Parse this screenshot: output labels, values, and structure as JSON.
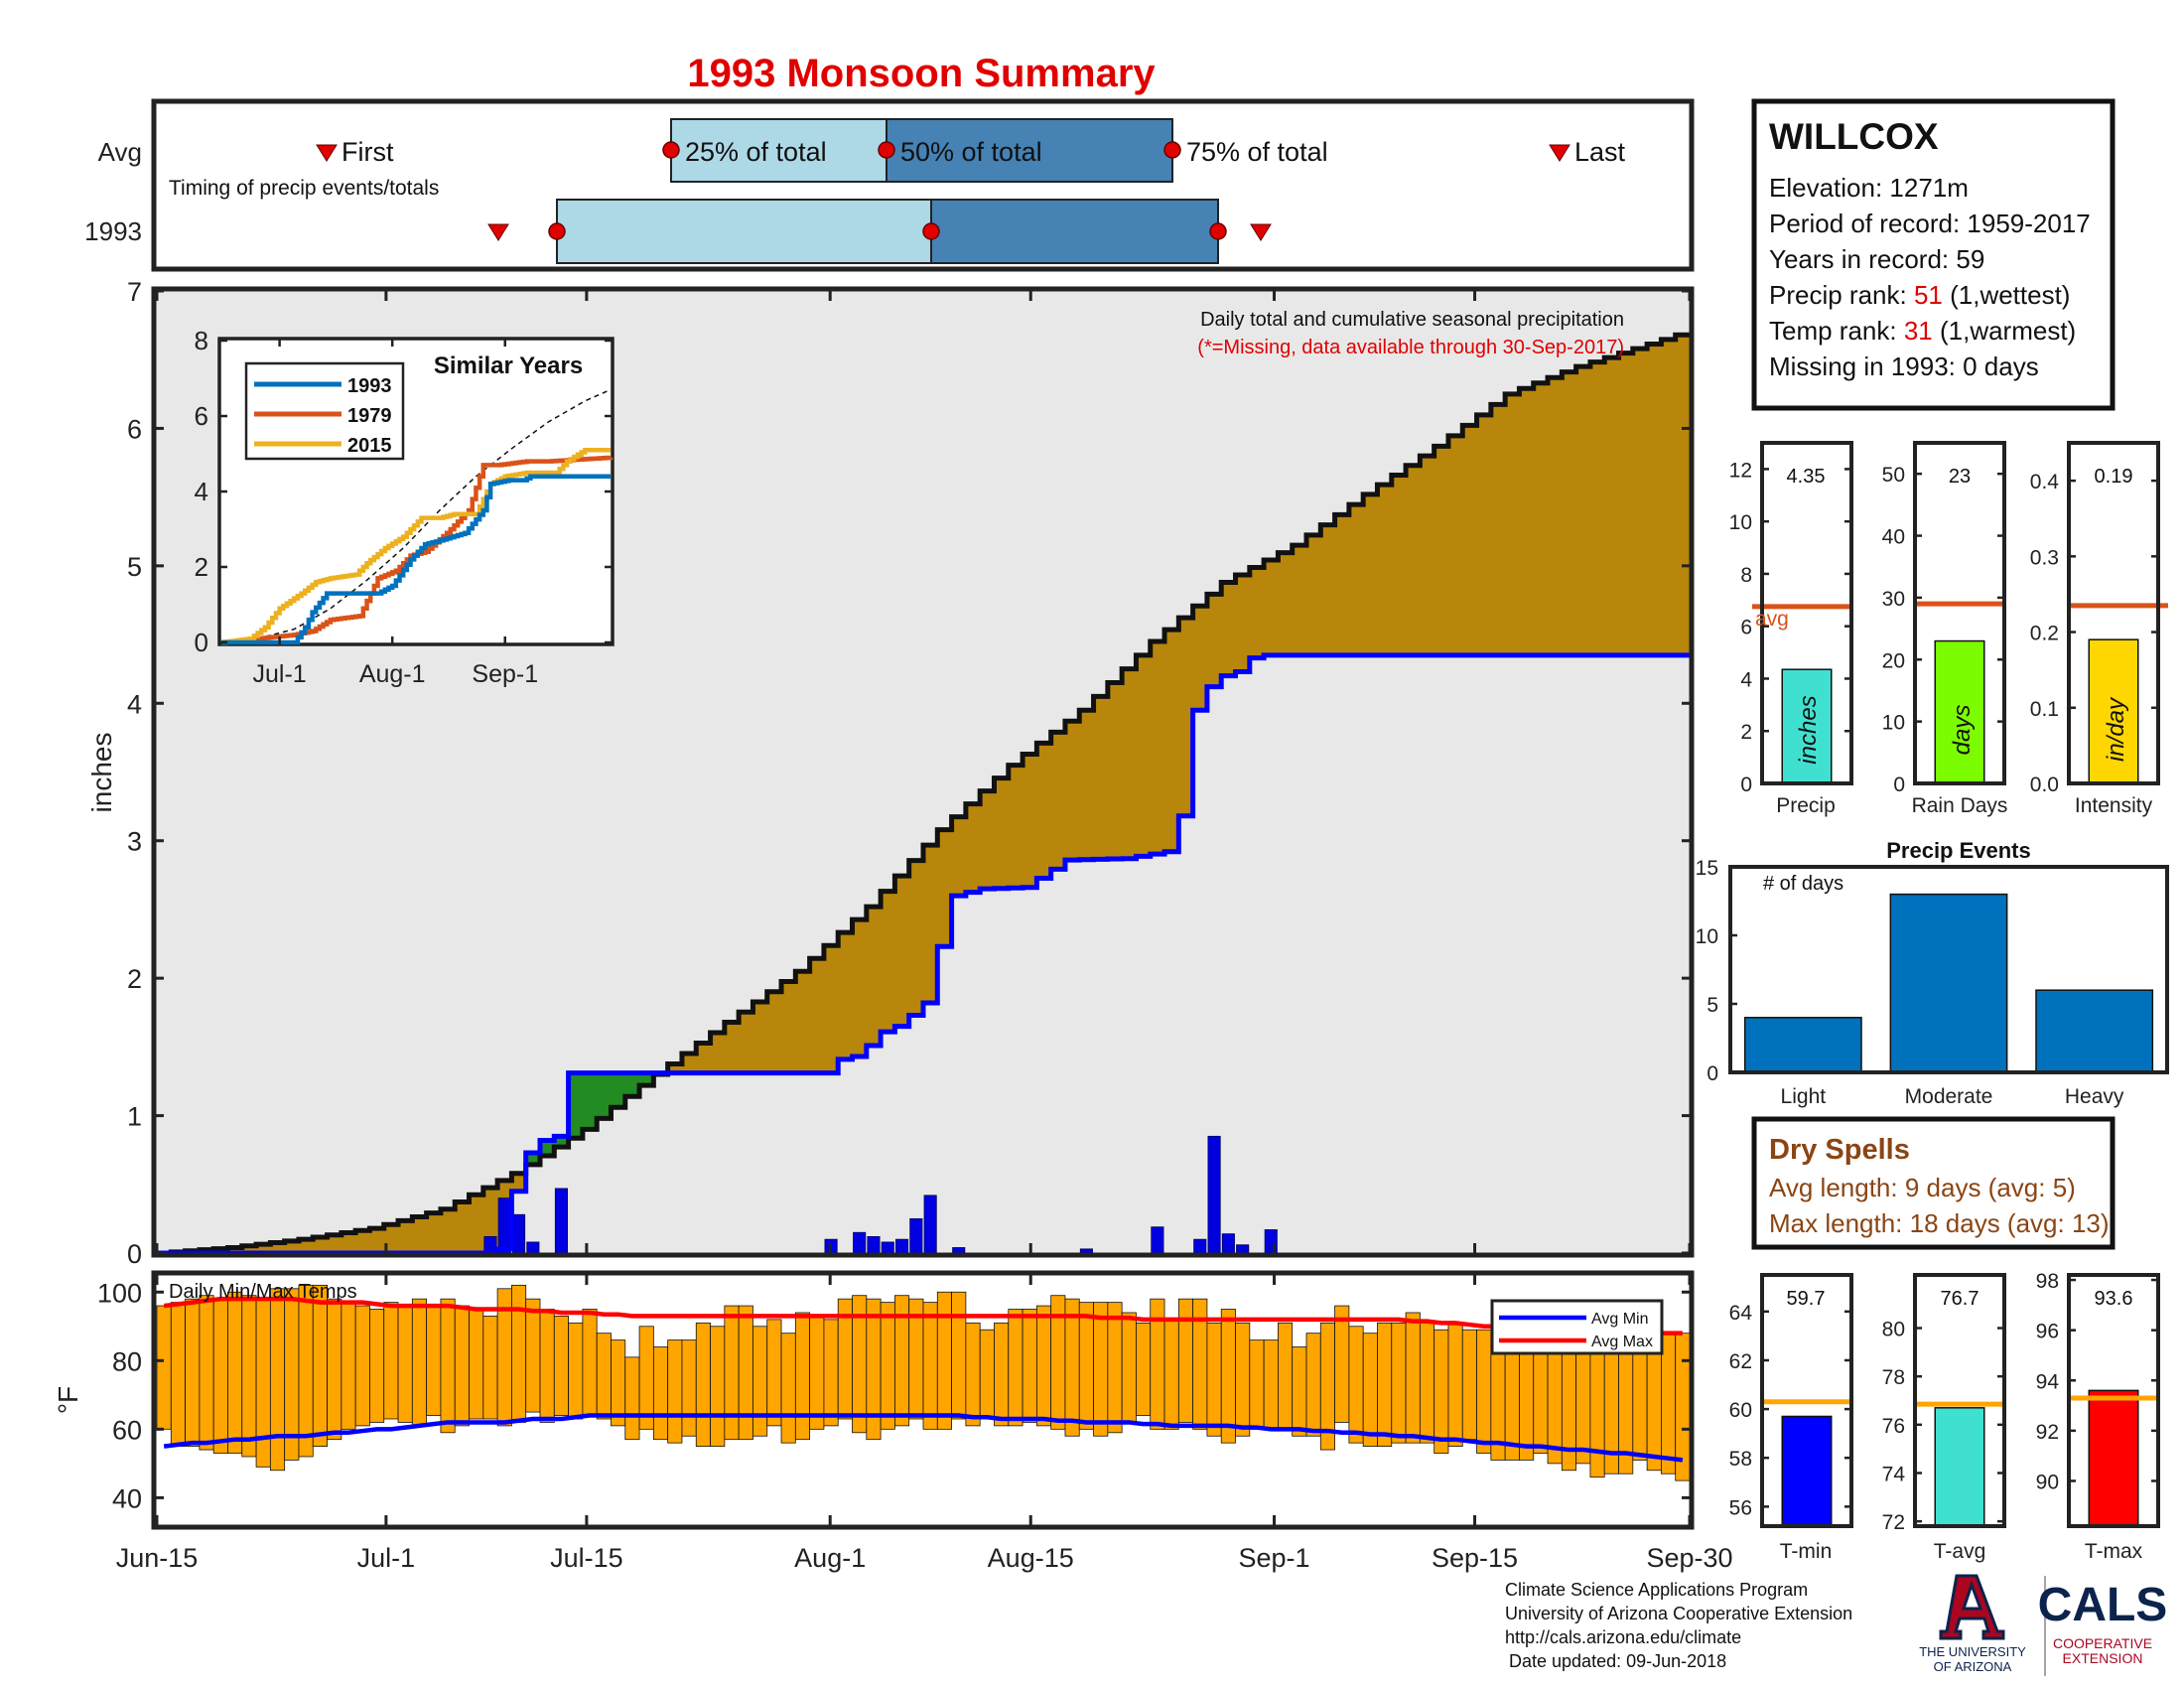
{
  "title": "1993 Monsoon Summary",
  "timing": {
    "row_labels": [
      "Avg",
      "1993"
    ],
    "first_label": "First",
    "last_label": "Last",
    "pct25_label": "25% of total",
    "pct50_label": "50% of total",
    "pct75_label": "75% of total",
    "caption": "Timing of precip events/totals"
  },
  "station": {
    "name": "WILLCOX",
    "elevation": "Elevation: 1271m",
    "period": "Period of record: 1959-2017",
    "years": "Years in record: 59",
    "precip_rank_prefix": "Precip rank: ",
    "precip_rank_value": "51",
    "precip_rank_suffix": " (1,wettest)",
    "temp_rank_prefix": "Temp rank: ",
    "temp_rank_value": "31",
    "temp_rank_suffix": " (1,warmest)",
    "missing": "Missing in 1993: 0 days"
  },
  "main_notes": {
    "line1": "Daily total and cumulative seasonal precipitation",
    "line2": "(*=Missing, data available through 30-Sep-2017)",
    "ylabel": "inches"
  },
  "inset": {
    "title": "Similar Years",
    "legend": [
      "1993",
      "1979",
      "2015"
    ],
    "xticks": [
      "Jul-1",
      "Aug-1",
      "Sep-1"
    ]
  },
  "x_axis_labels": [
    "Jun-15",
    "Jul-1",
    "Jul-15",
    "Aug-1",
    "Aug-15",
    "Sep-1",
    "Sep-15",
    "Sep-30"
  ],
  "temps": {
    "label": "Daily Min/Max Temps",
    "ylabel": "°F",
    "legend_min": "Avg Min",
    "legend_max": "Avg Max"
  },
  "small_panels": {
    "precip": {
      "value_label": "4.35",
      "unit": "inches",
      "name": "Precip",
      "avg_text": "avg"
    },
    "rain_days": {
      "value_label": "23",
      "unit": "days",
      "name": "Rain Days"
    },
    "intensity": {
      "value_label": "0.19",
      "unit": "in/day",
      "name": "Intensity"
    }
  },
  "events": {
    "title": "Precip Events",
    "sub": "# of days"
  },
  "dry_spells": {
    "title": "Dry Spells",
    "avg": "Avg length: 9 days (avg: 5)",
    "max": "Max length: 18 days (avg: 13)"
  },
  "temp_panels": {
    "tmin": {
      "value_label": "59.7",
      "name": "T-min"
    },
    "tavg": {
      "value_label": "76.7",
      "name": "T-avg"
    },
    "tmax": {
      "value_label": "93.6",
      "name": "T-max"
    }
  },
  "footer": {
    "line1": "Climate Science Applications Program",
    "line2": "University of Arizona Cooperative Extension",
    "line3": "http://cals.arizona.edu/climate",
    "line4": "Date updated: 09-Jun-2018",
    "ua_line1": "THE UNIVERSITY",
    "ua_line2": "OF ARIZONA",
    "cals": "CALS",
    "cals_sub1": "COOPERATIVE",
    "cals_sub2": "EXTENSION"
  },
  "colors": {
    "title": "#e00000",
    "avg_fill": "#b8860b",
    "above_fill": "#228b22",
    "year_line": "#0000ff",
    "bars": "#0000e0",
    "temp_bars": "#ffa500",
    "avg_max": "#ff0000",
    "avg_min": "#0000ff",
    "brown_text": "#8b4513",
    "c1993": "#0072bd",
    "c1979": "#d95319",
    "c2015": "#edb120"
  },
  "chart_data": [
    {
      "type": "line",
      "name": "main-cumulative",
      "x_unit": "day index (0 = Jun-15, 107 = Sep-30)",
      "ylim": [
        0,
        7
      ],
      "yticks": [
        0,
        1,
        2,
        3,
        4,
        5,
        6,
        7
      ],
      "series": [
        {
          "name": "avg_cum",
          "x": [
            0,
            5,
            10,
            15,
            20,
            25,
            30,
            35,
            40,
            45,
            50,
            55,
            60,
            65,
            70,
            75,
            80,
            85,
            90,
            95,
            100,
            104,
            107
          ],
          "values": [
            0,
            0.04,
            0.1,
            0.18,
            0.32,
            0.58,
            0.9,
            1.3,
            1.68,
            2.05,
            2.52,
            3.08,
            3.55,
            3.95,
            4.45,
            4.88,
            5.15,
            5.52,
            5.87,
            6.25,
            6.45,
            6.58,
            6.68
          ]
        },
        {
          "name": "1993_cum",
          "x": [
            0,
            23,
            24,
            25,
            26,
            27,
            28,
            29,
            30,
            31,
            47,
            48,
            49,
            50,
            51,
            52,
            53,
            54,
            55,
            56,
            58,
            61,
            64,
            68,
            71,
            72,
            73,
            74,
            75,
            76,
            77,
            78,
            107
          ],
          "values": [
            0,
            0,
            0.03,
            0.45,
            0.73,
            0.82,
            0.85,
            1.31,
            1.31,
            1.31,
            1.31,
            1.41,
            1.43,
            1.51,
            1.61,
            1.65,
            1.73,
            1.82,
            2.23,
            2.6,
            2.65,
            2.66,
            2.86,
            2.87,
            2.92,
            3.18,
            3.95,
            4.12,
            4.2,
            4.23,
            4.33,
            4.35,
            4.35
          ]
        },
        {
          "name": "daily_1993_bars",
          "x": [
            23,
            24,
            25,
            26,
            28,
            47,
            49,
            50,
            51,
            52,
            53,
            54,
            56,
            65,
            70,
            73,
            74,
            75,
            76,
            78
          ],
          "values": [
            0.12,
            0.4,
            0.28,
            0.08,
            0.47,
            0.1,
            0.15,
            0.12,
            0.08,
            0.1,
            0.25,
            0.42,
            0.04,
            0.03,
            0.19,
            0.1,
            0.85,
            0.14,
            0.06,
            0.17
          ]
        }
      ]
    },
    {
      "type": "line",
      "name": "similar-years-inset",
      "x_unit": "day index (0 = Jun-15)",
      "ylim": [
        0,
        8
      ],
      "yticks": [
        0,
        2,
        4,
        6,
        8
      ],
      "series": [
        {
          "name": "1993",
          "x": [
            0,
            20,
            23,
            25,
            29,
            43,
            47,
            52,
            56,
            60,
            67,
            72,
            74,
            79,
            83,
            85,
            107
          ],
          "values": [
            0,
            0,
            0.4,
            0.8,
            1.3,
            1.3,
            1.5,
            2.2,
            2.6,
            2.7,
            2.9,
            3.5,
            4.2,
            4.3,
            4.3,
            4.4,
            4.4
          ]
        },
        {
          "name": "1979",
          "x": [
            0,
            10,
            20,
            25,
            30,
            38,
            43,
            48,
            52,
            56,
            62,
            68,
            72,
            76,
            84,
            90,
            107
          ],
          "values": [
            0,
            0.1,
            0.2,
            0.3,
            0.6,
            0.7,
            1.7,
            1.9,
            2.3,
            2.4,
            2.9,
            3.5,
            4.7,
            4.7,
            4.8,
            4.8,
            4.9
          ]
        },
        {
          "name": "2015",
          "x": [
            0,
            8,
            12,
            16,
            22,
            26,
            30,
            37,
            40,
            45,
            50,
            55,
            60,
            64,
            70,
            74,
            78,
            84,
            92,
            95,
            100,
            107
          ],
          "values": [
            0,
            0.1,
            0.4,
            0.9,
            1.3,
            1.6,
            1.7,
            1.8,
            2.1,
            2.5,
            2.8,
            3.3,
            3.3,
            3.4,
            3.4,
            4.2,
            4.4,
            4.5,
            4.5,
            4.8,
            5.1,
            5.1
          ]
        },
        {
          "name": "avg_dashed",
          "x": [
            0,
            10,
            20,
            30,
            40,
            50,
            60,
            70,
            80,
            90,
            100,
            107
          ],
          "values": [
            0,
            0.1,
            0.35,
            0.9,
            1.65,
            2.5,
            3.5,
            4.4,
            5.15,
            5.85,
            6.4,
            6.7
          ]
        }
      ]
    },
    {
      "type": "bar",
      "name": "daily-temps",
      "x_unit": "day index (0 = Jun-15)",
      "ylim": [
        32,
        105
      ],
      "yticks": [
        40,
        60,
        80,
        100
      ],
      "tmax": [
        96,
        97,
        98,
        99,
        98,
        100,
        99,
        98,
        101,
        101,
        102,
        102,
        98,
        97,
        96,
        95,
        97,
        96,
        98,
        96,
        98,
        96,
        95,
        93,
        101,
        102,
        98,
        95,
        93,
        91,
        95,
        88,
        86,
        81,
        90,
        84,
        86,
        86,
        91,
        90,
        96,
        96,
        90,
        92,
        88,
        94,
        93,
        92,
        98,
        99,
        98,
        97,
        99,
        98,
        97,
        100,
        100,
        91,
        89,
        91,
        95,
        95,
        96,
        99,
        98,
        97,
        97,
        97,
        94,
        91,
        98,
        92,
        98,
        98,
        91,
        95,
        91,
        86,
        86,
        91,
        84,
        88,
        91,
        96,
        90,
        88,
        91,
        91,
        94,
        91,
        89,
        91,
        89,
        89,
        88,
        90,
        90,
        86,
        87,
        89,
        90,
        86,
        86,
        89,
        88,
        88,
        88,
        88
      ],
      "tmin": [
        60,
        55,
        55,
        54,
        53,
        53,
        52,
        49,
        48,
        51,
        52,
        55,
        57,
        60,
        61,
        62,
        63,
        62,
        61,
        64,
        59,
        61,
        63,
        63,
        61,
        62,
        65,
        62,
        64,
        63,
        64,
        63,
        61,
        57,
        60,
        57,
        56,
        58,
        55,
        55,
        57,
        57,
        58,
        61,
        56,
        57,
        60,
        61,
        63,
        59,
        57,
        60,
        61,
        63,
        60,
        60,
        63,
        61,
        63,
        61,
        61,
        62,
        61,
        60,
        58,
        60,
        58,
        59,
        62,
        64,
        60,
        60,
        62,
        60,
        58,
        56,
        58,
        60,
        60,
        60,
        58,
        58,
        54,
        62,
        56,
        55,
        55,
        56,
        56,
        56,
        53,
        55,
        57,
        53,
        51,
        51,
        51,
        53,
        50,
        48,
        50,
        46,
        47,
        47,
        51,
        48,
        47,
        45
      ],
      "avg_max": [
        96,
        96.5,
        97,
        97.5,
        98,
        98,
        98,
        98,
        98,
        98,
        97.5,
        97,
        97,
        97,
        97,
        96.5,
        96,
        96,
        96,
        96,
        96,
        95.5,
        95,
        95,
        95,
        95,
        94.5,
        94.5,
        94,
        94,
        94,
        93.5,
        93.5,
        93,
        93,
        93,
        93,
        93,
        93,
        93,
        93,
        93,
        93,
        93,
        93,
        93,
        93,
        93,
        93,
        93,
        93,
        93,
        93,
        93,
        93,
        93,
        93,
        93,
        93,
        93,
        93,
        93,
        93,
        93,
        93,
        93,
        92.5,
        92.5,
        92.5,
        92,
        92,
        92,
        92,
        92,
        92,
        92,
        92,
        92,
        92,
        92,
        92,
        92,
        92,
        92,
        92,
        92,
        92,
        92,
        91.5,
        91.5,
        91,
        91,
        90.5,
        90,
        90,
        90,
        89.5,
        89,
        89,
        89,
        88.5,
        88.5,
        88,
        88,
        88,
        88,
        88,
        88
      ],
      "avg_min": [
        55,
        55.5,
        56,
        56,
        56.5,
        57,
        57,
        57.5,
        58,
        58,
        58,
        58.5,
        59,
        59,
        59.5,
        60,
        60,
        60.5,
        61,
        61.5,
        62,
        62,
        62,
        62,
        62,
        62.5,
        63,
        63,
        63,
        63.5,
        64,
        64,
        64,
        64,
        64,
        64,
        64,
        64,
        64,
        64,
        64,
        64,
        64,
        64,
        64,
        64,
        64,
        64,
        64,
        64,
        64,
        64,
        64,
        64,
        64,
        64,
        64,
        63.5,
        63.5,
        63,
        63,
        63,
        63,
        62.5,
        62.5,
        62,
        62,
        62,
        62,
        61.5,
        61.5,
        61,
        61,
        61,
        61,
        61,
        60.5,
        60.5,
        60,
        60,
        60,
        59.5,
        59.5,
        59,
        59,
        58.5,
        58.5,
        58,
        58,
        57.5,
        57,
        57,
        56.5,
        56,
        56,
        55.5,
        55,
        55,
        54.5,
        54,
        54,
        53.5,
        53,
        53,
        52.5,
        52,
        51.5,
        51
      ]
    },
    {
      "type": "bar",
      "name": "small-panels",
      "panels": [
        {
          "name": "Precip",
          "value": 4.35,
          "avg": 6.75,
          "ylim": [
            0,
            13
          ],
          "yticks": [
            0,
            2,
            4,
            6,
            8,
            10,
            12
          ],
          "color": "#40e0d0"
        },
        {
          "name": "Rain Days",
          "value": 23,
          "avg": 29,
          "ylim": [
            0,
            55
          ],
          "yticks": [
            0,
            10,
            20,
            30,
            40,
            50
          ],
          "color": "#7cfc00"
        },
        {
          "name": "Intensity",
          "value": 0.19,
          "avg": 0.235,
          "ylim": [
            0,
            0.45
          ],
          "yticks": [
            0,
            0.1,
            0.2,
            0.3,
            0.4
          ],
          "color": "#ffd700"
        }
      ]
    },
    {
      "type": "bar",
      "name": "precip-events",
      "categories": [
        "Light",
        "Moderate",
        "Heavy"
      ],
      "values": [
        4,
        13,
        6
      ],
      "ylim": [
        0,
        15
      ],
      "yticks": [
        0,
        5,
        10,
        15
      ]
    },
    {
      "type": "bar",
      "name": "temp-panels",
      "panels": [
        {
          "name": "T-min",
          "value": 59.7,
          "avg": 60.3,
          "ylim": [
            55.2,
            65.5
          ],
          "yticks": [
            56,
            58,
            60,
            62,
            64
          ],
          "color": "#0000ff"
        },
        {
          "name": "T-avg",
          "value": 76.7,
          "avg": 76.85,
          "ylim": [
            71.8,
            82.2
          ],
          "yticks": [
            72,
            74,
            76,
            78,
            80
          ],
          "color": "#40e0d0"
        },
        {
          "name": "T-max",
          "value": 93.6,
          "avg": 93.3,
          "ylim": [
            88.2,
            98.2
          ],
          "yticks": [
            90,
            92,
            94,
            96,
            98
          ],
          "color": "#ff0000"
        }
      ]
    }
  ]
}
